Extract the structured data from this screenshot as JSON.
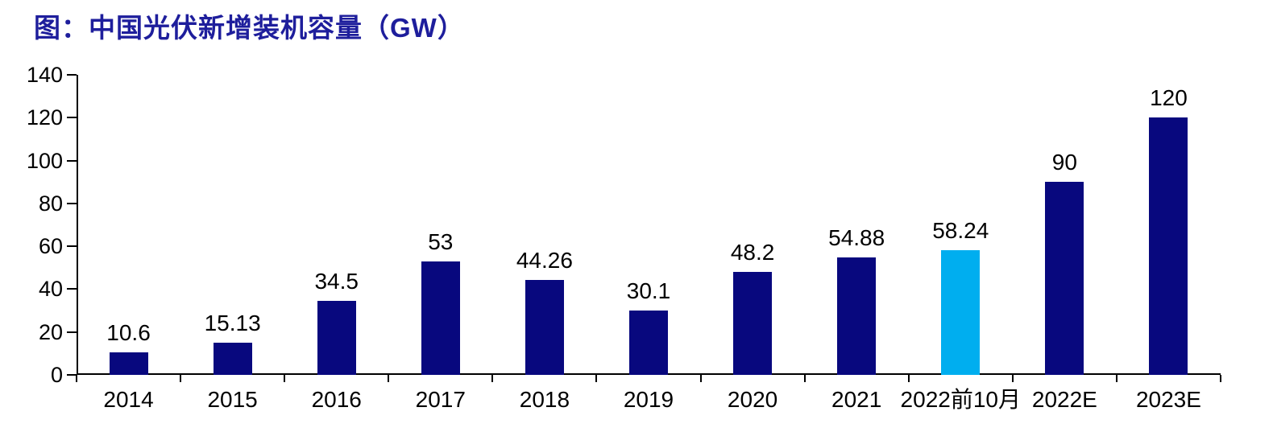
{
  "title": "图：中国光伏新增装机容量（GW）",
  "title_color": "#1E1E9C",
  "chart_data": {
    "type": "bar",
    "title": "图：中国光伏新增装机容量（GW）",
    "categories": [
      "2014",
      "2015",
      "2016",
      "2017",
      "2018",
      "2019",
      "2020",
      "2021",
      "2022前10月",
      "2022E",
      "2023E"
    ],
    "values": [
      10.6,
      15.13,
      34.5,
      53,
      44.26,
      30.1,
      48.2,
      54.88,
      58.24,
      90,
      120
    ],
    "value_labels": [
      "10.6",
      "15.13",
      "34.5",
      "53",
      "44.26",
      "30.1",
      "48.2",
      "54.88",
      "58.24",
      "90",
      "120"
    ],
    "yticks": [
      0,
      20,
      40,
      60,
      80,
      100,
      120,
      140
    ],
    "ylim": [
      0,
      140
    ],
    "xlabel": "",
    "ylabel": "",
    "grid": false,
    "legend_position": "none",
    "bar_color": "#08087E",
    "highlight_color": "#00AEEF",
    "highlight_index": 8,
    "axis_color": "#000000",
    "text_color": "#000000"
  }
}
